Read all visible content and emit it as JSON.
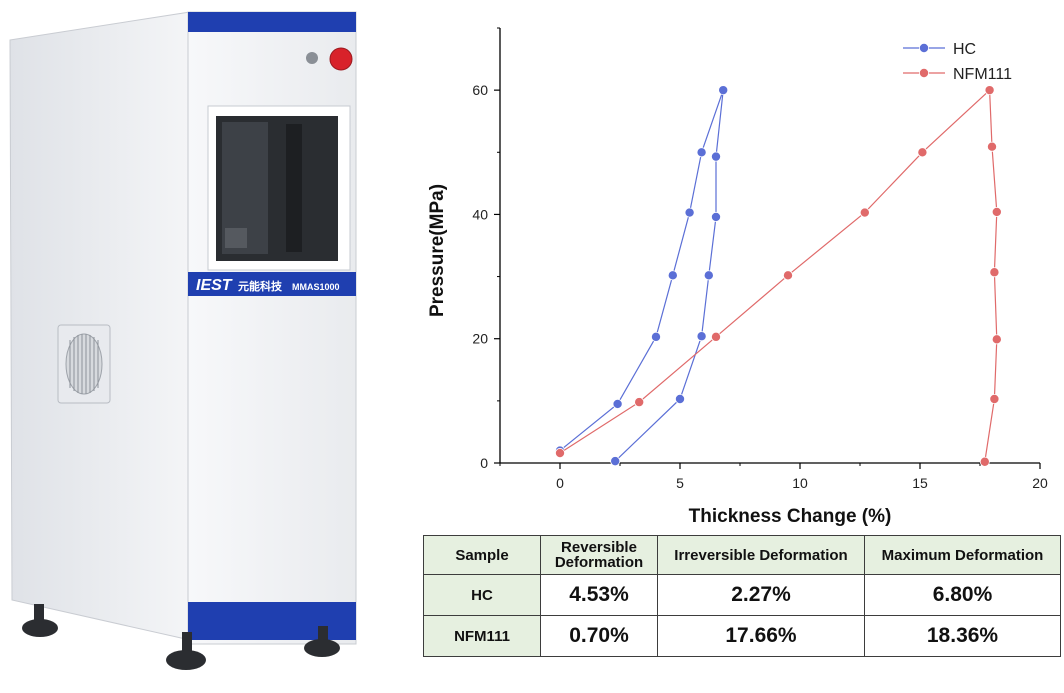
{
  "machine": {
    "brand": "IEST",
    "label": "元能科技",
    "model": "MMAS1000"
  },
  "chart_data": {
    "type": "line",
    "xlabel": "Thickness Change (%)",
    "ylabel": "Pressure(MPa)",
    "xlim": [
      -2.5,
      20
    ],
    "ylim": [
      0,
      70
    ],
    "xticks": [
      0,
      5,
      10,
      15,
      20
    ],
    "yticks": [
      0,
      20,
      40,
      60
    ],
    "grid": false,
    "legend_position": "top-right",
    "series": [
      {
        "name": "HC",
        "color": "#5b6fd6",
        "x": [
          0,
          2.4,
          4.0,
          4.7,
          5.4,
          5.9,
          6.8,
          6.5,
          6.5,
          6.2,
          5.9,
          5.0,
          2.3
        ],
        "y": [
          2,
          9.5,
          20.3,
          30.2,
          40.3,
          50,
          60,
          49.3,
          39.6,
          30.2,
          20.4,
          10.3,
          0.3
        ]
      },
      {
        "name": "NFM111",
        "color": "#e06a6a",
        "x": [
          0,
          3.3,
          6.5,
          9.5,
          12.7,
          15.1,
          17.9,
          18.0,
          18.2,
          18.1,
          18.2,
          18.1,
          17.7
        ],
        "y": [
          1.6,
          9.8,
          20.3,
          30.2,
          40.3,
          50,
          60,
          50.9,
          40.4,
          30.7,
          19.9,
          10.3,
          0.2
        ]
      }
    ]
  },
  "table": {
    "headers": [
      "Sample",
      "Reversible Deformation",
      "Irreversible Deformation",
      "Maximum Deformation"
    ],
    "rows": [
      {
        "sample": "HC",
        "reversible": "4.53%",
        "irreversible": "2.27%",
        "maximum": "6.80%"
      },
      {
        "sample": "NFM111",
        "reversible": "0.70%",
        "irreversible": "17.66%",
        "maximum": "18.36%"
      }
    ]
  }
}
